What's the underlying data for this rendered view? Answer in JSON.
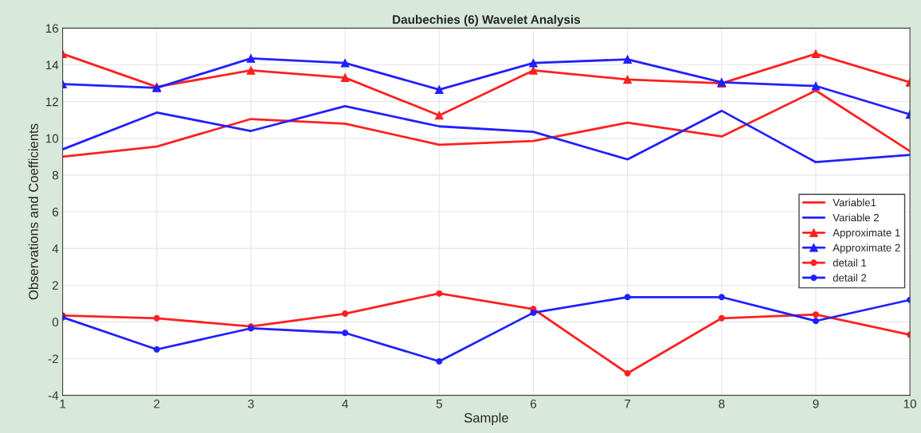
{
  "chart_data": {
    "type": "line",
    "title": "Daubechies (6) Wavelet Analysis",
    "xlabel": "Sample",
    "ylabel": "Observations and Coefficients",
    "x": [
      1,
      2,
      3,
      4,
      5,
      6,
      7,
      8,
      9,
      10
    ],
    "xlim": [
      1,
      10
    ],
    "xticks": [
      1,
      2,
      3,
      4,
      5,
      6,
      7,
      8,
      9,
      10
    ],
    "ylim": [
      -4,
      16
    ],
    "yticks": [
      -4,
      -2,
      0,
      2,
      4,
      6,
      8,
      10,
      12,
      14,
      16
    ],
    "grid": true,
    "legend": "right",
    "series": [
      {
        "name": "Variable1",
        "color": "#ff2020",
        "marker": "none",
        "values": [
          9.0,
          9.55,
          11.05,
          10.8,
          9.65,
          9.85,
          10.85,
          10.1,
          12.6,
          9.3
        ]
      },
      {
        "name": "Variable 2",
        "color": "#2020ff",
        "marker": "none",
        "values": [
          9.4,
          11.4,
          10.4,
          11.75,
          10.65,
          10.35,
          8.85,
          11.5,
          8.7,
          9.1
        ]
      },
      {
        "name": "Approximate 1",
        "color": "#ff2020",
        "marker": "triangle",
        "values": [
          14.6,
          12.8,
          13.7,
          13.3,
          11.25,
          13.7,
          13.2,
          13.0,
          14.6,
          13.05
        ]
      },
      {
        "name": "Approximate 2",
        "color": "#2020ff",
        "marker": "triangle",
        "values": [
          12.95,
          12.75,
          14.35,
          14.1,
          12.65,
          14.1,
          14.3,
          13.05,
          12.85,
          11.3
        ]
      },
      {
        "name": "detail 1",
        "color": "#ff2020",
        "marker": "circle",
        "values": [
          0.35,
          0.2,
          -0.25,
          0.45,
          1.55,
          0.7,
          -2.8,
          0.2,
          0.4,
          -0.7
        ]
      },
      {
        "name": "detail 2",
        "color": "#2020ff",
        "marker": "circle",
        "values": [
          0.25,
          -1.5,
          -0.35,
          -0.6,
          -2.15,
          0.5,
          1.35,
          1.35,
          0.05,
          1.2
        ]
      }
    ]
  }
}
